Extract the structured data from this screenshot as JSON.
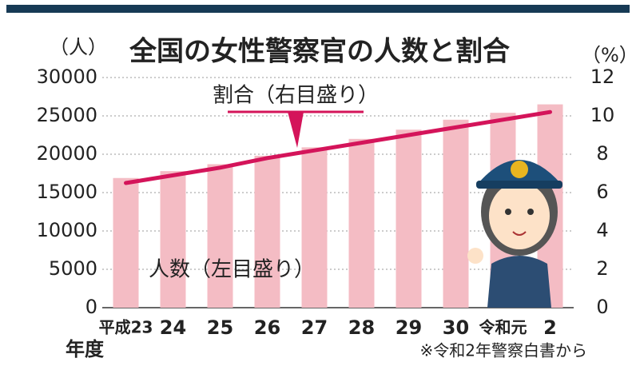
{
  "chart_data": {
    "type": "bar-line",
    "title": "全国の女性警察官の人数と割合",
    "ylabel": "（人）",
    "y2label": "（%）",
    "xlabel": "年度",
    "categories": [
      "平成23",
      "24",
      "25",
      "26",
      "27",
      "28",
      "29",
      "30",
      "令和元",
      "2"
    ],
    "series": [
      {
        "name": "人数（左目盛り）",
        "type": "bar",
        "color": "#f4bcc4",
        "values": [
          16900,
          17800,
          18700,
          19800,
          20900,
          22000,
          23200,
          24500,
          25400,
          26500
        ]
      },
      {
        "name": "割合（右目盛り）",
        "type": "line",
        "axis": "y2",
        "color": "#d4145a",
        "values": [
          6.5,
          6.9,
          7.3,
          7.8,
          8.2,
          8.6,
          9.0,
          9.4,
          9.8,
          10.2
        ]
      }
    ],
    "ylim": [
      0,
      30000
    ],
    "yticks": [
      0,
      5000,
      10000,
      15000,
      20000,
      25000,
      30000
    ],
    "y2lim": [
      0,
      12
    ],
    "y2ticks": [
      0,
      2,
      4,
      6,
      8,
      10,
      12
    ],
    "grid": true,
    "source": "※令和2年警察白書から"
  }
}
